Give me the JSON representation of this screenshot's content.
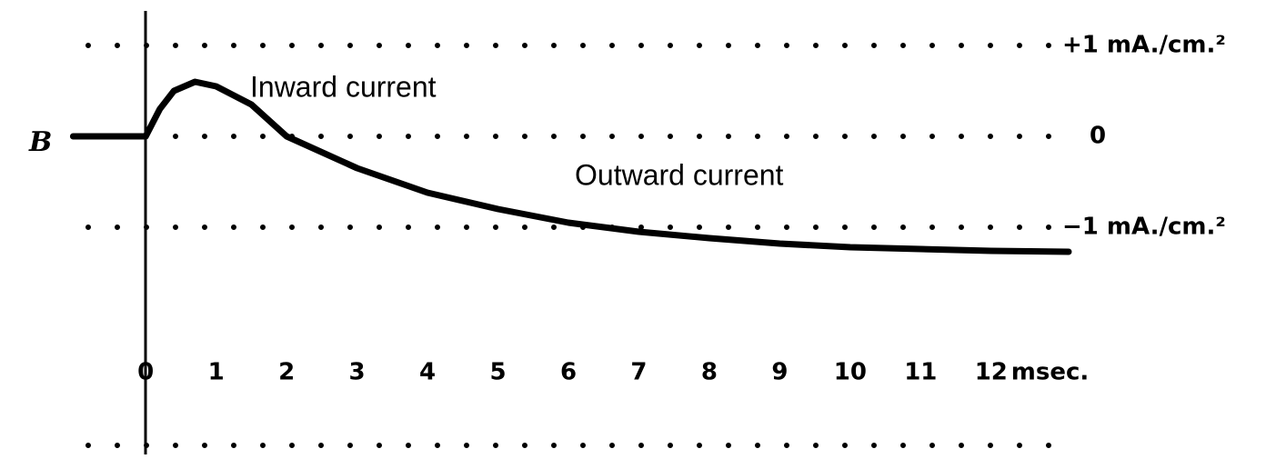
{
  "chart_data": {
    "type": "line",
    "series_label": "B",
    "xlabel": "msec.",
    "annotations": [
      "Inward current",
      "Outward current"
    ],
    "x": [
      -1.03,
      0,
      0.2,
      0.4,
      0.7,
      1,
      1.5,
      2,
      3,
      4,
      5,
      6,
      7,
      8,
      9,
      10,
      11,
      12,
      13.1
    ],
    "values": [
      0,
      0,
      0.3,
      0.5,
      0.6,
      0.55,
      0.35,
      0,
      -0.35,
      -0.62,
      -0.8,
      -0.95,
      -1.05,
      -1.12,
      -1.18,
      -1.22,
      -1.24,
      -1.26,
      -1.27
    ],
    "color": "#000000",
    "xlim": [
      -1.1,
      13.1
    ],
    "ylim": [
      -3.5,
      1.5
    ],
    "xticks": [
      0,
      1,
      2,
      3,
      4,
      5,
      6,
      7,
      8,
      9,
      10,
      11,
      12
    ],
    "yticks": [
      {
        "value": 1,
        "label": "+1 mA./cm.²"
      },
      0,
      {
        "value": -1,
        "label": "−1 mA./cm.²"
      }
    ],
    "grid": true
  }
}
